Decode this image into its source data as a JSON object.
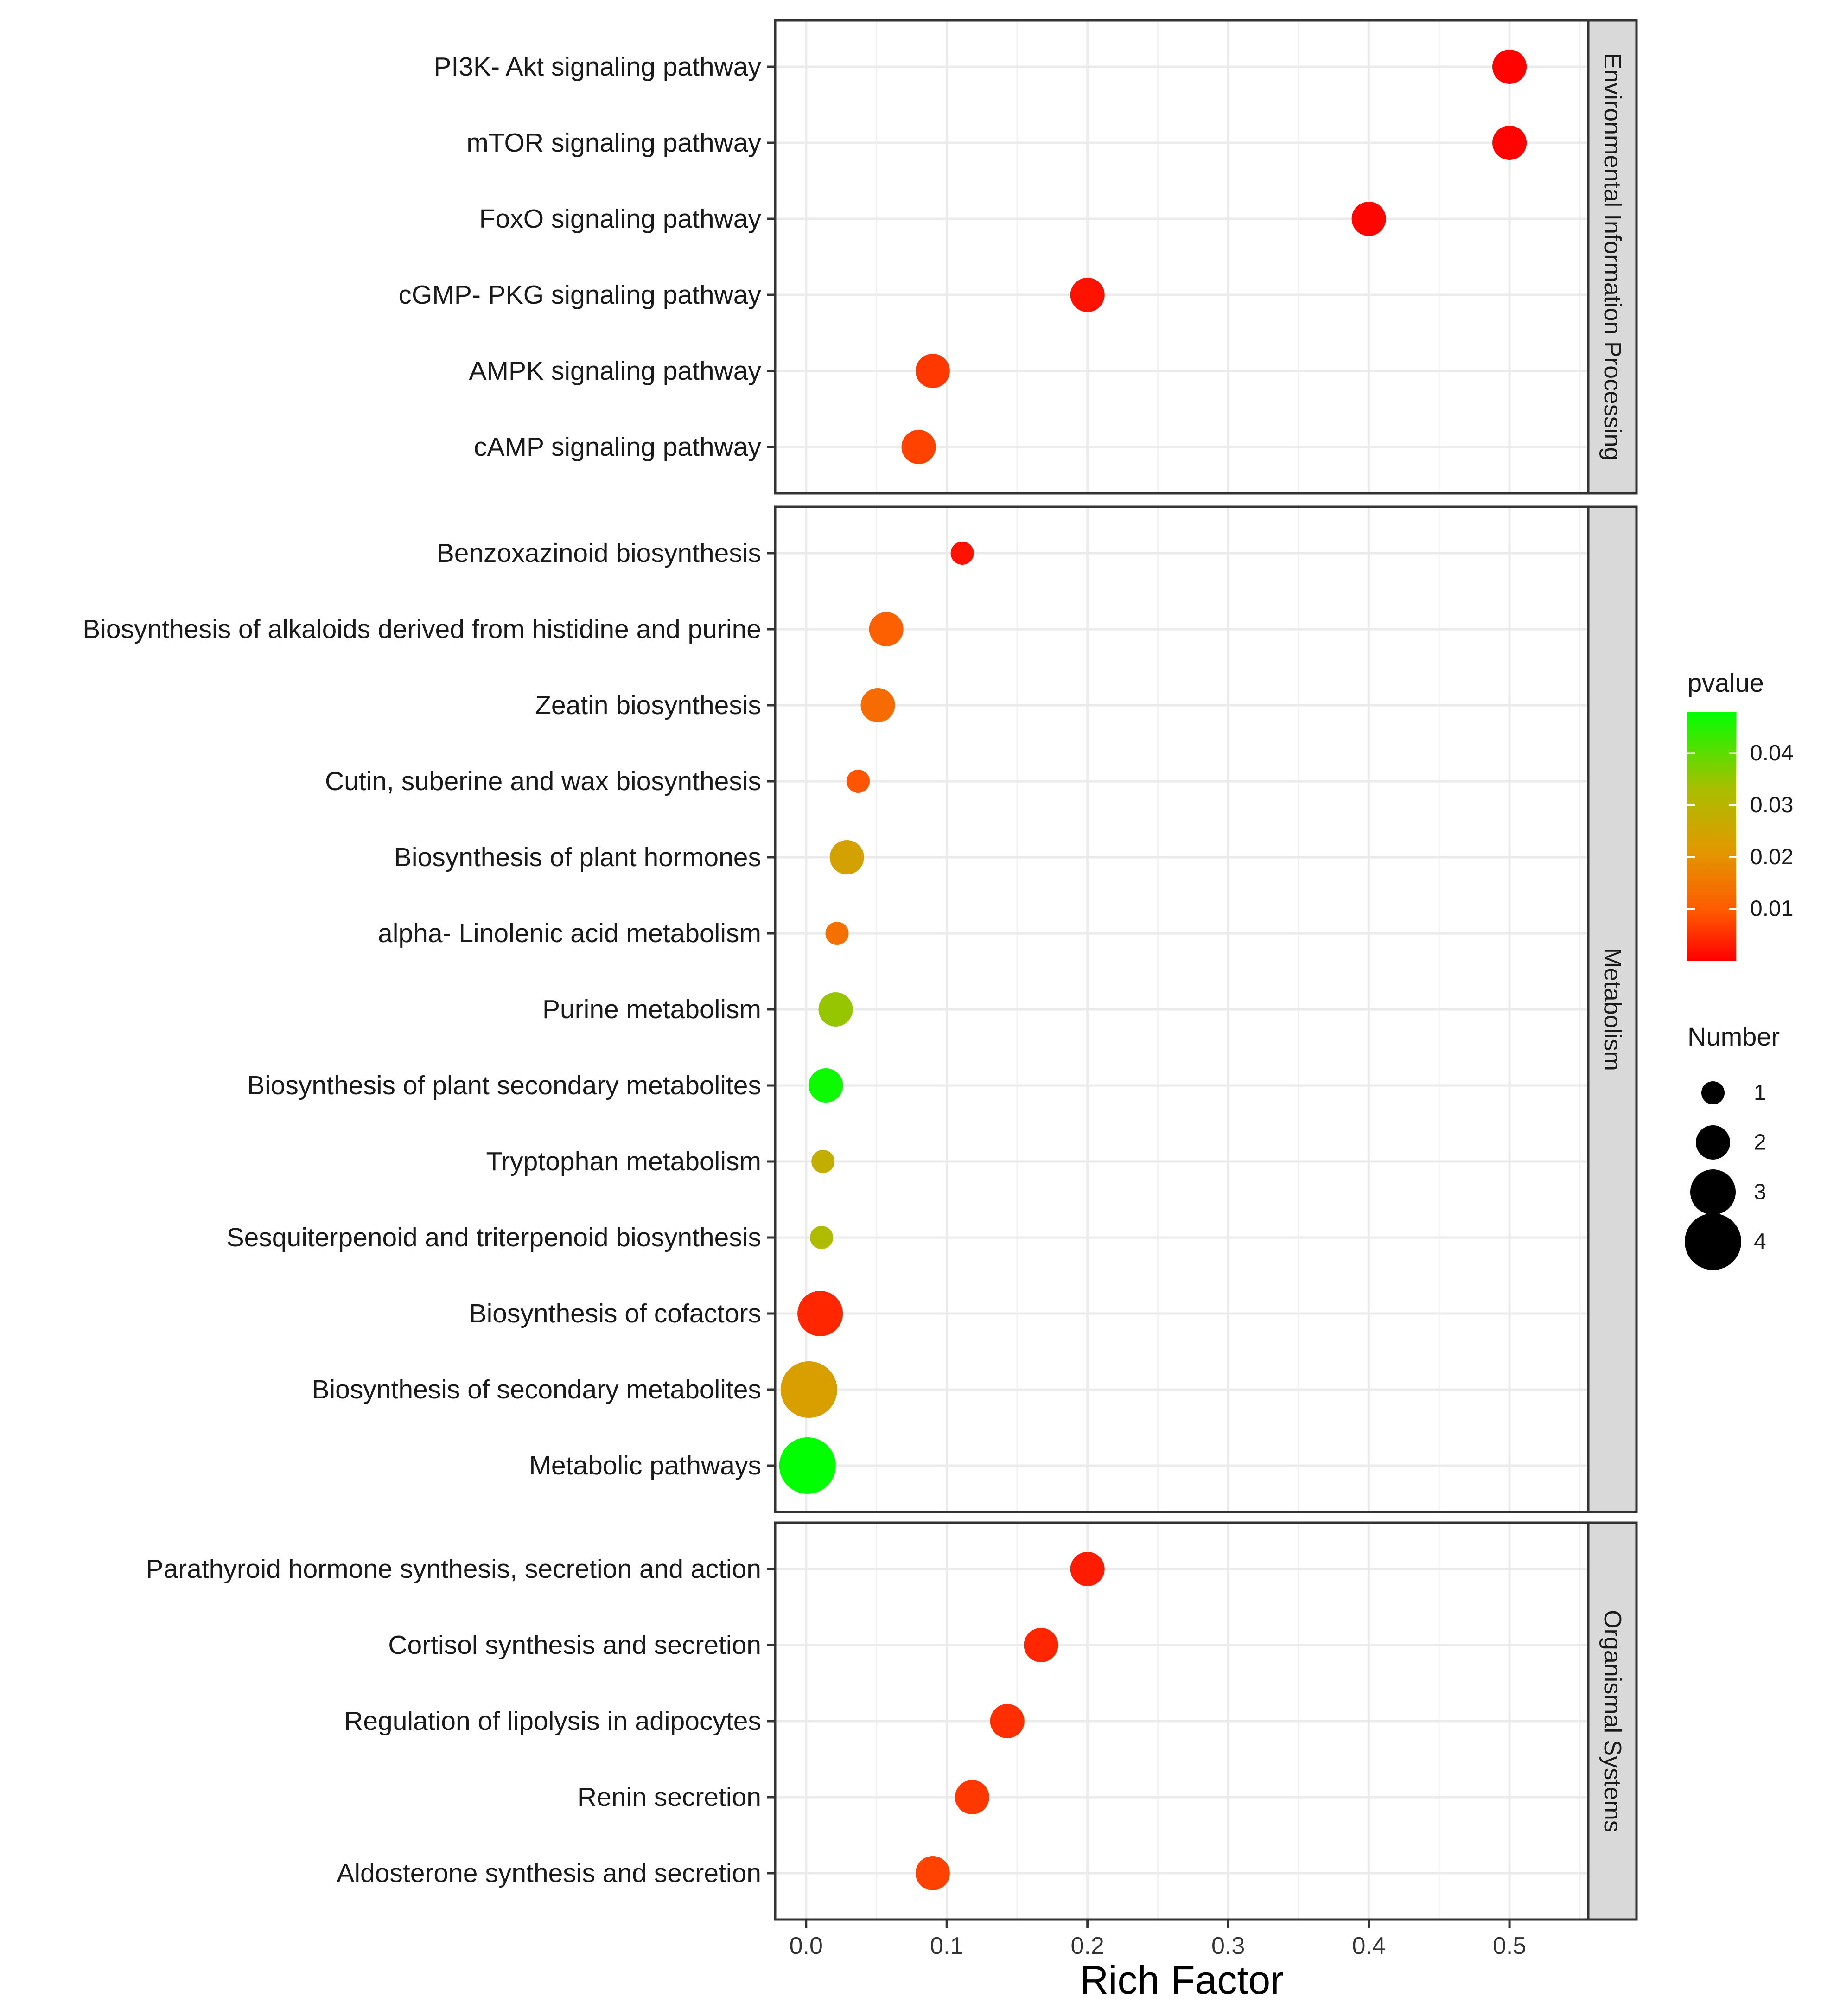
{
  "chart_data": {
    "type": "scatter",
    "xlabel": "Rich Factor",
    "ylabel": "",
    "xlim": [
      -0.022,
      0.556
    ],
    "xticks": [
      0.0,
      0.1,
      0.2,
      0.3,
      0.4,
      0.5
    ],
    "xtick_labels": [
      "0.0",
      "0.1",
      "0.2",
      "0.3",
      "0.4",
      "0.5"
    ],
    "grid": true,
    "color_scale": {
      "name": "pvalue",
      "min": 0.0,
      "max": 0.048,
      "ticks": [
        0.04,
        0.03,
        0.02,
        0.01
      ],
      "tick_labels": [
        "0.04",
        "0.03",
        "0.02",
        "0.01"
      ],
      "low_color": "#ff0000",
      "mid_color": "#ff8c00",
      "high_color": "#00ff00"
    },
    "size_scale": {
      "name": "Number",
      "values": [
        1,
        2,
        3,
        4
      ],
      "labels": [
        "1",
        "2",
        "3",
        "4"
      ]
    },
    "facets": [
      {
        "label": "Environmental Information Processing",
        "points": [
          {
            "term": "PI3K- Akt signaling pathway",
            "rich_factor": 0.5,
            "pvalue": 0.0003,
            "number": 2
          },
          {
            "term": "mTOR signaling pathway",
            "rich_factor": 0.5,
            "pvalue": 0.0003,
            "number": 2
          },
          {
            "term": "FoxO signaling pathway",
            "rich_factor": 0.4,
            "pvalue": 0.0005,
            "number": 2
          },
          {
            "term": "cGMP- PKG signaling pathway",
            "rich_factor": 0.2,
            "pvalue": 0.002,
            "number": 2
          },
          {
            "term": "AMPK signaling pathway",
            "rich_factor": 0.09,
            "pvalue": 0.006,
            "number": 2
          },
          {
            "term": "cAMP signaling pathway",
            "rich_factor": 0.08,
            "pvalue": 0.007,
            "number": 2
          }
        ]
      },
      {
        "label": "Metabolism",
        "points": [
          {
            "term": "Benzoxazinoid biosynthesis",
            "rich_factor": 0.111,
            "pvalue": 0.002,
            "number": 1
          },
          {
            "term": "Biosynthesis of alkaloids derived from histidine and purine",
            "rich_factor": 0.057,
            "pvalue": 0.011,
            "number": 2
          },
          {
            "term": "Zeatin biosynthesis",
            "rich_factor": 0.051,
            "pvalue": 0.013,
            "number": 2
          },
          {
            "term": "Cutin, suberine and wax biosynthesis",
            "rich_factor": 0.037,
            "pvalue": 0.009,
            "number": 1
          },
          {
            "term": "Biosynthesis of plant hormones",
            "rich_factor": 0.029,
            "pvalue": 0.024,
            "number": 2
          },
          {
            "term": "alpha- Linolenic acid metabolism",
            "rich_factor": 0.022,
            "pvalue": 0.014,
            "number": 1
          },
          {
            "term": "Purine metabolism",
            "rich_factor": 0.021,
            "pvalue": 0.035,
            "number": 2
          },
          {
            "term": "Biosynthesis of plant secondary metabolites",
            "rich_factor": 0.014,
            "pvalue": 0.047,
            "number": 2
          },
          {
            "term": "Tryptophan metabolism",
            "rich_factor": 0.012,
            "pvalue": 0.028,
            "number": 1
          },
          {
            "term": "Sesquiterpenoid and triterpenoid biosynthesis",
            "rich_factor": 0.011,
            "pvalue": 0.032,
            "number": 1
          },
          {
            "term": "Biosynthesis of cofactors",
            "rich_factor": 0.01,
            "pvalue": 0.004,
            "number": 3
          },
          {
            "term": "Biosynthesis of secondary metabolites",
            "rich_factor": 0.002,
            "pvalue": 0.023,
            "number": 4
          },
          {
            "term": "Metabolic pathways",
            "rich_factor": 0.001,
            "pvalue": 0.048,
            "number": 4
          }
        ]
      },
      {
        "label": "Organismal Systems",
        "points": [
          {
            "term": "Parathyroid hormone synthesis, secretion and action",
            "rich_factor": 0.2,
            "pvalue": 0.003,
            "number": 2
          },
          {
            "term": "Cortisol synthesis and secretion",
            "rich_factor": 0.167,
            "pvalue": 0.004,
            "number": 2
          },
          {
            "term": "Regulation of lipolysis in adipocytes",
            "rich_factor": 0.143,
            "pvalue": 0.005,
            "number": 2
          },
          {
            "term": "Renin secretion",
            "rich_factor": 0.118,
            "pvalue": 0.006,
            "number": 2
          },
          {
            "term": "Aldosterone synthesis and secretion",
            "rich_factor": 0.09,
            "pvalue": 0.007,
            "number": 2
          }
        ]
      }
    ]
  }
}
